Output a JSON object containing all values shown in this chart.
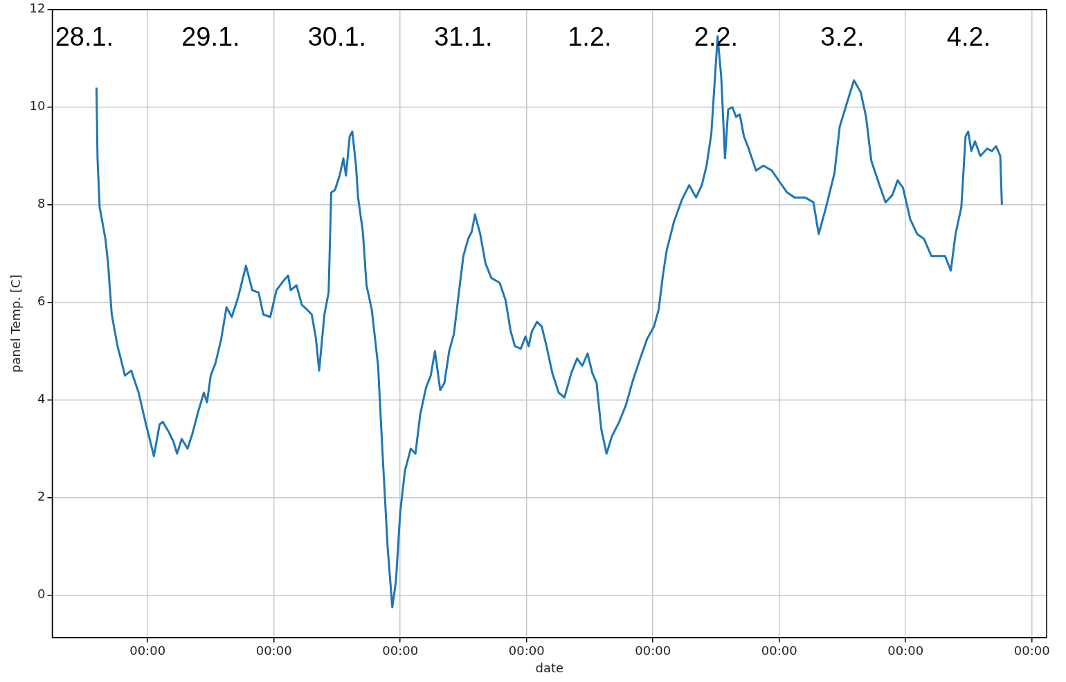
{
  "chart_data": {
    "type": "line",
    "xlabel": "date",
    "ylabel": "panel Temp. [C]",
    "x": [
      "--01-28T14:18",
      "--01-28T14:30",
      "--01-28T14:54",
      "--01-28T16:00",
      "--01-28T16:30",
      "--01-28T17:12",
      "--01-28T18:18",
      "--01-28T18:54",
      "--01-28T19:42",
      "--01-28T20:54",
      "--01-28T22:18",
      "--01-28T23:36",
      "--01-29T01:12",
      "--01-29T02:18",
      "--01-29T02:54",
      "--01-29T04:00",
      "--01-29T04:54",
      "--01-29T05:36",
      "--01-29T06:30",
      "--01-29T07:36",
      "--01-29T08:30",
      "--01-29T09:36",
      "--01-29T10:42",
      "--01-29T11:18",
      "--01-29T12:00",
      "--01-29T12:54",
      "--01-29T14:00",
      "--01-29T15:00",
      "--01-29T16:00",
      "--01-29T17:12",
      "--01-29T18:42",
      "--01-29T19:54",
      "--01-29T21:06",
      "--01-29T22:00",
      "--01-29T23:18",
      "--01-30T00:30",
      "--01-30T01:54",
      "--01-30T02:42",
      "--01-30T03:12",
      "--01-30T04:18",
      "--01-30T05:18",
      "--01-30T06:18",
      "--01-30T07:12",
      "--01-30T08:00",
      "--01-30T08:36",
      "--01-30T09:36",
      "--01-30T10:24",
      "--01-30T10:54",
      "--01-30T11:36",
      "--01-30T12:30",
      "--01-30T13:12",
      "--01-30T13:42",
      "--01-30T14:24",
      "--01-30T14:54",
      "--01-30T15:36",
      "--01-30T16:00",
      "--01-30T16:54",
      "--01-30T17:36",
      "--01-30T18:36",
      "--01-30T19:48",
      "--01-30T20:36",
      "--01-30T21:36",
      "--01-30T22:30",
      "--01-30T23:12",
      "--01-31T00:00",
      "--01-31T00:54",
      "--01-31T02:00",
      "--01-31T02:54",
      "--01-31T03:48",
      "--01-31T04:54",
      "--01-31T05:48",
      "--01-31T06:36",
      "--01-31T07:36",
      "--01-31T08:24",
      "--01-31T09:18",
      "--01-31T10:12",
      "--01-31T11:12",
      "--01-31T12:00",
      "--01-31T12:54",
      "--01-31T13:36",
      "--01-31T14:12",
      "--01-31T15:12",
      "--01-31T16:12",
      "--01-31T17:18",
      "--01-31T18:54",
      "--01-31T20:00",
      "--01-31T21:00",
      "--01-31T21:48",
      "--01-31T22:54",
      "--01-31T23:48",
      "--02-01T00:24",
      "--02-01T01:00",
      "--02-01T02:00",
      "--02-01T02:54",
      "--02-01T03:48",
      "--02-01T04:54",
      "--02-01T06:06",
      "--02-01T07:12",
      "--02-01T08:30",
      "--02-01T09:36",
      "--02-01T10:36",
      "--02-01T11:36",
      "--02-01T12:30",
      "--02-01T13:18",
      "--02-01T14:12",
      "--02-01T15:12",
      "--02-01T16:12",
      "--02-01T17:36",
      "--02-01T18:54",
      "--02-01T20:12",
      "--02-01T21:36",
      "--02-01T22:54",
      "--02-02T00:12",
      "--02-02T01:06",
      "--02-02T01:54",
      "--02-02T02:36",
      "--02-02T04:00",
      "--02-02T05:30",
      "--02-02T06:54",
      "--02-02T08:12",
      "--02-02T09:18",
      "--02-02T10:12",
      "--02-02T11:06",
      "--02-02T12:18",
      "--02-02T13:00",
      "--02-02T13:42",
      "--02-02T14:18",
      "--02-02T15:06",
      "--02-02T15:48",
      "--02-02T16:30",
      "--02-02T17:18",
      "--02-02T18:12",
      "--02-02T19:36",
      "--02-02T21:00",
      "--02-02T22:36",
      "--02-03T00:12",
      "--02-03T01:30",
      "--02-03T02:54",
      "--02-03T04:54",
      "--02-03T06:30",
      "--02-03T07:30",
      "--02-03T08:54",
      "--02-03T10:30",
      "--02-03T11:30",
      "--02-03T12:54",
      "--02-03T14:12",
      "--02-03T15:30",
      "--02-03T16:30",
      "--02-03T17:30",
      "--02-03T18:54",
      "--02-03T20:12",
      "--02-03T21:30",
      "--02-03T22:30",
      "--02-03T23:30",
      "--02-04T00:54",
      "--02-04T02:12",
      "--02-04T03:30",
      "--02-04T04:54",
      "--02-04T06:12",
      "--02-04T07:30",
      "--02-04T08:36",
      "--02-04T09:30",
      "--02-04T10:36",
      "--02-04T11:24",
      "--02-04T11:54",
      "--02-04T12:30",
      "--02-04T13:12",
      "--02-04T14:12",
      "--02-04T15:30",
      "--02-04T16:24",
      "--02-04T17:12",
      "--02-04T18:00",
      "--02-04T18:18"
    ],
    "series": [
      {
        "color": "#1f77b4",
        "values": [
          10.4,
          8.95,
          7.95,
          7.3,
          6.8,
          5.75,
          5.1,
          4.85,
          4.5,
          4.6,
          4.15,
          3.55,
          2.85,
          3.5,
          3.55,
          3.35,
          3.15,
          2.9,
          3.2,
          3.0,
          3.3,
          3.75,
          4.15,
          3.95,
          4.5,
          4.75,
          5.25,
          5.9,
          5.7,
          6.1,
          6.75,
          6.25,
          6.2,
          5.75,
          5.7,
          6.25,
          6.45,
          6.55,
          6.25,
          6.35,
          5.95,
          5.85,
          5.75,
          5.25,
          4.6,
          5.75,
          6.2,
          8.25,
          8.3,
          8.6,
          8.95,
          8.6,
          9.4,
          9.5,
          8.8,
          8.15,
          7.45,
          6.35,
          5.85,
          4.7,
          3.0,
          1.0,
          -0.25,
          0.3,
          1.7,
          2.55,
          3.0,
          2.9,
          3.7,
          4.25,
          4.5,
          5.0,
          4.2,
          4.35,
          5.0,
          5.35,
          6.25,
          6.95,
          7.3,
          7.45,
          7.8,
          7.4,
          6.8,
          6.5,
          6.4,
          6.05,
          5.4,
          5.1,
          5.05,
          5.3,
          5.1,
          5.4,
          5.6,
          5.5,
          5.1,
          4.55,
          4.15,
          4.05,
          4.55,
          4.85,
          4.7,
          4.95,
          4.55,
          4.35,
          3.4,
          2.9,
          3.25,
          3.55,
          3.9,
          4.4,
          4.85,
          5.25,
          5.5,
          5.85,
          6.55,
          7.05,
          7.65,
          8.1,
          8.4,
          8.15,
          8.4,
          8.8,
          9.45,
          11.45,
          10.6,
          8.95,
          9.95,
          10.0,
          9.8,
          9.85,
          9.4,
          9.15,
          8.7,
          8.8,
          8.7,
          8.45,
          8.25,
          8.15,
          8.15,
          8.05,
          7.4,
          7.95,
          8.65,
          9.6,
          10.1,
          10.55,
          10.3,
          9.8,
          8.9,
          8.45,
          8.05,
          8.2,
          8.5,
          8.35,
          7.7,
          7.4,
          7.3,
          6.95,
          6.95,
          6.95,
          6.65,
          7.4,
          7.95,
          9.4,
          9.5,
          9.1,
          9.3,
          9.0,
          9.15,
          9.1,
          9.2,
          9.0,
          8.0
        ]
      }
    ],
    "xlim": [
      "--01-28T05:54",
      "--02-05T02:48"
    ],
    "xticks": [
      {
        "value": "--01-29",
        "label": "00:00"
      },
      {
        "value": "--01-30",
        "label": "00:00"
      },
      {
        "value": "--01-31",
        "label": "00:00"
      },
      {
        "value": "--02-01",
        "label": "00:00"
      },
      {
        "value": "--02-02",
        "label": "00:00"
      },
      {
        "value": "--02-03",
        "label": "00:00"
      },
      {
        "value": "--02-04",
        "label": "00:00"
      },
      {
        "value": "--02-05",
        "label": "00:00"
      }
    ],
    "ylim": [
      -0.87,
      12
    ],
    "yticks": [
      0,
      2,
      4,
      6,
      8,
      10,
      12
    ],
    "grid": true,
    "legend": false,
    "marker": "none",
    "line_style": "solid",
    "annotations": [
      "28.1.",
      "29.1.",
      "30.1.",
      "31.1.",
      "1.2.",
      "2.2.",
      "3.2.",
      "4.2."
    ]
  }
}
